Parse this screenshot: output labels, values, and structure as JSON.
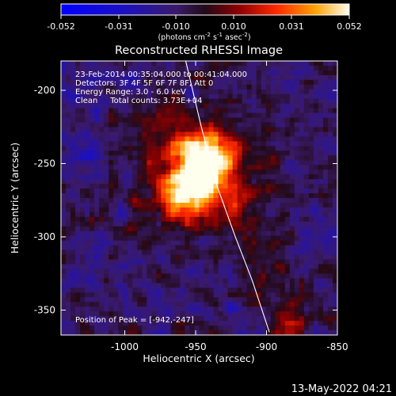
{
  "colorbar": {
    "ticks": [
      "-0.052",
      "-0.031",
      "-0.010",
      "0.010",
      "0.031",
      "0.052"
    ],
    "units_main": "(photons cm",
    "units_sup1": "-2",
    "units_mid": " s",
    "units_sup2": "-1",
    "units_end": " asec",
    "units_sup3": "-2",
    "units_close": ")"
  },
  "chart_data": {
    "type": "heatmap",
    "title": "Reconstructed RHESSI Image",
    "xlabel": "Heliocentric X (arcsec)",
    "ylabel": "Heliocentric Y (arcsec)",
    "xlim": [
      -1045,
      -850
    ],
    "ylim": [
      -367,
      -180
    ],
    "x_ticks": [
      "-1000",
      "-950",
      "-900",
      "-850"
    ],
    "y_ticks": [
      "-200",
      "-250",
      "-300",
      "-350"
    ],
    "x_tick_values": [
      -1000,
      -950,
      -900,
      -850
    ],
    "y_tick_values": [
      -200,
      -250,
      -300,
      -350
    ],
    "color_range": [
      -0.052,
      0.052
    ],
    "peak": [
      -942,
      -247
    ],
    "limb_line": [
      [
        -957,
        -180
      ],
      [
        -946,
        -225
      ],
      [
        -935,
        -265
      ],
      [
        -922,
        -300
      ],
      [
        -910,
        -330
      ],
      [
        -898,
        -365
      ]
    ],
    "info_lines": [
      "23-Feb-2014 00:35:04.000 to 00:41:04.000",
      "Detectors: 3F 4F 5F 6F 7F 8F, Att 0",
      "Energy Range: 3.0 - 6.0 keV",
      "Clean     Total counts: 3.73E+04"
    ],
    "peak_label": "Position of Peak = [-942,-247]"
  },
  "timestamp": "13-May-2022 04:21"
}
